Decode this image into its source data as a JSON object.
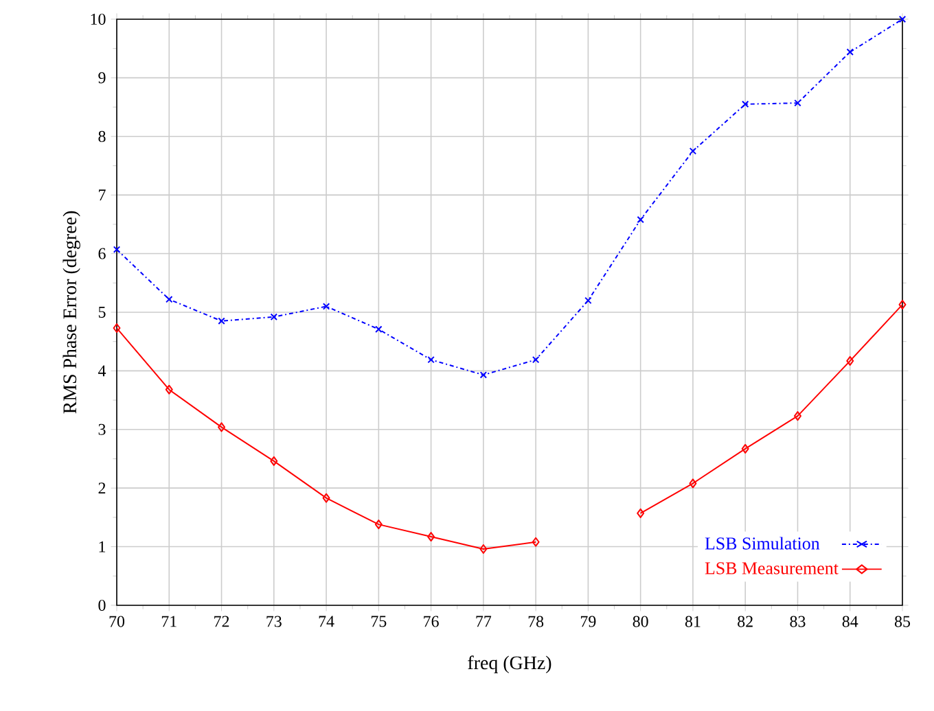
{
  "chart_data": {
    "type": "line",
    "xlabel": "freq (GHz)",
    "ylabel": "RMS Phase Error (degree)",
    "x": [
      70,
      71,
      72,
      73,
      74,
      75,
      76,
      77,
      78,
      79,
      80,
      81,
      82,
      83,
      84,
      85
    ],
    "series": [
      {
        "name": "LSB Simulation",
        "color": "#0000ff",
        "marker": "cross",
        "line_style": "dashed",
        "values": [
          6.07,
          5.22,
          4.85,
          4.92,
          5.1,
          4.71,
          4.19,
          3.93,
          4.19,
          5.2,
          6.58,
          7.75,
          8.55,
          8.57,
          9.44,
          10.0
        ]
      },
      {
        "name": "LSB Measurement",
        "color": "#ff0000",
        "marker": "diamond",
        "line_style": "solid",
        "values": [
          4.73,
          3.68,
          3.04,
          2.46,
          1.83,
          1.38,
          1.17,
          0.96,
          1.08,
          null,
          1.57,
          2.08,
          2.67,
          3.23,
          4.17,
          5.13
        ]
      }
    ],
    "xlim": [
      70,
      85
    ],
    "xticks": [
      70,
      71,
      72,
      73,
      74,
      75,
      76,
      77,
      78,
      79,
      80,
      81,
      82,
      83,
      84,
      85
    ],
    "ylim": [
      0,
      10
    ],
    "yticks": [
      0,
      1,
      2,
      3,
      4,
      5,
      6,
      7,
      8,
      9,
      10
    ],
    "grid": true,
    "legend": "bottom right"
  }
}
